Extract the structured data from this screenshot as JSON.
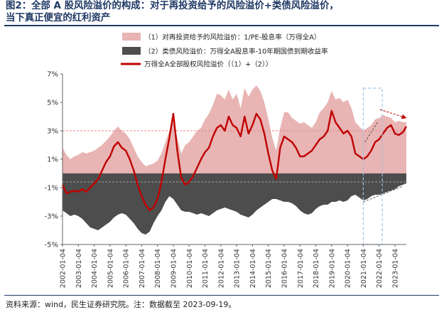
{
  "header": {
    "title_line1": "图2：全部 A 股风险溢价的构成：对于再投资给予的风险溢价+类债风险溢价，",
    "title_line2": "当下真正便宜的红利资产"
  },
  "footer": {
    "source": "资料来源：wind，民生证券研究院。注：数据截至 2023-09-19。"
  },
  "colors": {
    "area_pos": "#e8b4b4",
    "area_neg": "#4d4d4d",
    "line": "#c00000",
    "dashed_ref": "#e88a8a",
    "dashed_box": "#9dc3e6",
    "axis": "#666666"
  },
  "chart_data": {
    "type": "area",
    "title": "",
    "ylim": [
      -5,
      7
    ],
    "yticks": [
      "-5%",
      "-3%",
      "-1%",
      "1%",
      "3%",
      "5%",
      "7%"
    ],
    "ytick_values": [
      -5,
      -3,
      -1,
      1,
      3,
      5,
      7
    ],
    "xticks": [
      "2002-01-04",
      "2003-01-04",
      "2004-01-04",
      "2005-01-04",
      "2006-01-04",
      "2007-01-04",
      "2008-01-04",
      "2009-01-04",
      "2010-01-04",
      "2011-01-04",
      "2012-01-04",
      "2013-01-04",
      "2014-01-04",
      "2015-01-04",
      "2016-01-04",
      "2017-01-04",
      "2018-01-04",
      "2019-01-04",
      "2020-01-04",
      "2021-01-04",
      "2022-01-04",
      "2023-01-04"
    ],
    "x_start": 2002.0,
    "x_end": 2023.72,
    "reference_line": 3.0,
    "highlight_box": {
      "x0": 2021.0,
      "x1": 2022.2,
      "y0": -5,
      "y1": 6
    },
    "series": [
      {
        "name": "（1）对再投资给予的风险溢价：1/PE-股息率（万得全A）",
        "kind": "area_pos",
        "x": [
          2002.0,
          2002.25,
          2002.5,
          2002.75,
          2003.0,
          2003.25,
          2003.5,
          2003.75,
          2004.0,
          2004.25,
          2004.5,
          2004.75,
          2005.0,
          2005.25,
          2005.5,
          2005.75,
          2006.0,
          2006.25,
          2006.5,
          2006.75,
          2007.0,
          2007.25,
          2007.5,
          2007.75,
          2008.0,
          2008.25,
          2008.5,
          2008.75,
          2009.0,
          2009.25,
          2009.5,
          2009.75,
          2010.0,
          2010.25,
          2010.5,
          2010.75,
          2011.0,
          2011.25,
          2011.5,
          2011.75,
          2012.0,
          2012.25,
          2012.5,
          2012.75,
          2013.0,
          2013.25,
          2013.5,
          2013.75,
          2014.0,
          2014.25,
          2014.5,
          2014.75,
          2015.0,
          2015.25,
          2015.5,
          2015.75,
          2016.0,
          2016.25,
          2016.5,
          2016.75,
          2017.0,
          2017.25,
          2017.5,
          2017.75,
          2018.0,
          2018.25,
          2018.5,
          2018.75,
          2019.0,
          2019.25,
          2019.5,
          2019.75,
          2020.0,
          2020.25,
          2020.5,
          2020.75,
          2021.0,
          2021.25,
          2021.5,
          2021.75,
          2022.0,
          2022.25,
          2022.5,
          2022.75,
          2023.0,
          2023.25,
          2023.5,
          2023.72
        ],
        "y": [
          1.8,
          1.3,
          1.0,
          1.2,
          1.3,
          1.5,
          1.4,
          1.5,
          1.6,
          1.8,
          2.0,
          2.3,
          2.6,
          3.0,
          3.3,
          3.0,
          2.8,
          2.4,
          1.8,
          1.2,
          0.8,
          0.5,
          0.6,
          0.7,
          0.9,
          1.4,
          2.2,
          3.0,
          3.8,
          2.5,
          1.4,
          2.0,
          2.2,
          2.6,
          3.0,
          3.2,
          3.8,
          4.2,
          4.8,
          5.6,
          5.5,
          5.2,
          5.9,
          5.2,
          5.6,
          4.6,
          6.0,
          5.4,
          5.9,
          6.2,
          5.8,
          5.0,
          3.8,
          2.5,
          1.6,
          3.2,
          4.3,
          4.3,
          3.9,
          3.7,
          3.5,
          3.6,
          3.4,
          3.2,
          3.6,
          4.3,
          4.6,
          5.0,
          5.8,
          5.2,
          5.3,
          5.0,
          5.2,
          4.6,
          3.6,
          3.3,
          3.0,
          3.2,
          3.4,
          3.8,
          3.9,
          4.1,
          4.0,
          3.9,
          3.6,
          3.7,
          3.6,
          3.6
        ]
      },
      {
        "name": "（2）类债风险溢价：万得全A股息率-10年期国债到期收益率",
        "kind": "area_neg",
        "x": [
          2002.0,
          2002.25,
          2002.5,
          2002.75,
          2003.0,
          2003.25,
          2003.5,
          2003.75,
          2004.0,
          2004.25,
          2004.5,
          2004.75,
          2005.0,
          2005.25,
          2005.5,
          2005.75,
          2006.0,
          2006.25,
          2006.5,
          2006.75,
          2007.0,
          2007.25,
          2007.5,
          2007.75,
          2008.0,
          2008.25,
          2008.5,
          2008.75,
          2009.0,
          2009.25,
          2009.5,
          2009.75,
          2010.0,
          2010.25,
          2010.5,
          2010.75,
          2011.0,
          2011.25,
          2011.5,
          2011.75,
          2012.0,
          2012.25,
          2012.5,
          2012.75,
          2013.0,
          2013.25,
          2013.5,
          2013.75,
          2014.0,
          2014.25,
          2014.5,
          2014.75,
          2015.0,
          2015.25,
          2015.5,
          2015.75,
          2016.0,
          2016.25,
          2016.5,
          2016.75,
          2017.0,
          2017.25,
          2017.5,
          2017.75,
          2018.0,
          2018.25,
          2018.5,
          2018.75,
          2019.0,
          2019.25,
          2019.5,
          2019.75,
          2020.0,
          2020.25,
          2020.5,
          2020.75,
          2021.0,
          2021.25,
          2021.5,
          2021.75,
          2022.0,
          2022.25,
          2022.5,
          2022.75,
          2023.0,
          2023.25,
          2023.5,
          2023.72
        ],
        "y": [
          -2.6,
          -2.8,
          -3.0,
          -2.9,
          -3.0,
          -3.2,
          -3.5,
          -3.8,
          -3.9,
          -4.0,
          -3.8,
          -3.6,
          -3.4,
          -3.1,
          -2.9,
          -2.8,
          -2.9,
          -3.2,
          -3.5,
          -3.9,
          -4.2,
          -4.3,
          -4.1,
          -3.5,
          -3.0,
          -2.6,
          -2.0,
          -1.6,
          -1.8,
          -2.2,
          -2.6,
          -2.7,
          -2.7,
          -2.8,
          -2.9,
          -2.8,
          -2.9,
          -3.0,
          -2.8,
          -2.6,
          -2.5,
          -2.4,
          -2.5,
          -2.6,
          -2.7,
          -2.9,
          -3.0,
          -3.1,
          -2.9,
          -2.6,
          -2.4,
          -2.2,
          -2.0,
          -1.8,
          -1.8,
          -1.9,
          -2.0,
          -2.0,
          -2.1,
          -2.3,
          -2.6,
          -2.8,
          -2.9,
          -2.8,
          -2.5,
          -2.3,
          -2.2,
          -2.2,
          -2.0,
          -2.0,
          -1.9,
          -2.0,
          -1.9,
          -1.6,
          -1.5,
          -1.7,
          -1.9,
          -1.8,
          -1.6,
          -1.5,
          -1.5,
          -1.4,
          -1.3,
          -1.2,
          -1.1,
          -0.9,
          -0.8,
          -0.7
        ]
      },
      {
        "name": "万得全A全部股权风险溢价（（1）+（2））",
        "kind": "line",
        "x": [
          2002.0,
          2002.25,
          2002.5,
          2002.75,
          2003.0,
          2003.25,
          2003.5,
          2003.75,
          2004.0,
          2004.25,
          2004.5,
          2004.75,
          2005.0,
          2005.25,
          2005.5,
          2005.75,
          2006.0,
          2006.25,
          2006.5,
          2006.75,
          2007.0,
          2007.25,
          2007.5,
          2007.75,
          2008.0,
          2008.25,
          2008.5,
          2008.75,
          2009.0,
          2009.25,
          2009.5,
          2009.75,
          2010.0,
          2010.25,
          2010.5,
          2010.75,
          2011.0,
          2011.25,
          2011.5,
          2011.75,
          2012.0,
          2012.25,
          2012.5,
          2012.75,
          2013.0,
          2013.25,
          2013.5,
          2013.75,
          2014.0,
          2014.25,
          2014.5,
          2014.75,
          2015.0,
          2015.25,
          2015.5,
          2015.75,
          2016.0,
          2016.25,
          2016.5,
          2016.75,
          2017.0,
          2017.25,
          2017.5,
          2017.75,
          2018.0,
          2018.25,
          2018.5,
          2018.75,
          2019.0,
          2019.25,
          2019.5,
          2019.75,
          2020.0,
          2020.25,
          2020.5,
          2020.75,
          2021.0,
          2021.25,
          2021.5,
          2021.75,
          2022.0,
          2022.25,
          2022.5,
          2022.75,
          2023.0,
          2023.25,
          2023.5,
          2023.72
        ],
        "y": [
          -0.8,
          -1.4,
          -1.3,
          -1.2,
          -1.3,
          -1.1,
          -1.3,
          -1.0,
          -0.7,
          -0.4,
          0.2,
          0.8,
          1.2,
          1.9,
          2.2,
          1.8,
          1.6,
          1.0,
          0.2,
          -0.8,
          -1.6,
          -2.2,
          -2.6,
          -2.4,
          -1.8,
          -0.6,
          1.0,
          2.5,
          4.2,
          1.6,
          -0.3,
          -0.8,
          -0.6,
          -0.2,
          0.4,
          1.0,
          1.5,
          1.8,
          2.6,
          3.2,
          3.4,
          3.0,
          4.0,
          3.4,
          3.2,
          2.6,
          4.0,
          2.8,
          3.4,
          4.2,
          3.8,
          2.8,
          1.4,
          0.2,
          -0.4,
          1.8,
          2.6,
          2.4,
          2.2,
          1.8,
          1.2,
          1.2,
          1.4,
          1.6,
          2.0,
          2.4,
          2.6,
          3.0,
          4.4,
          3.6,
          3.2,
          2.8,
          3.0,
          2.6,
          1.4,
          1.2,
          1.0,
          1.2,
          1.6,
          2.2,
          2.4,
          2.8,
          3.2,
          3.4,
          2.8,
          2.7,
          2.9,
          3.3
        ]
      }
    ]
  }
}
